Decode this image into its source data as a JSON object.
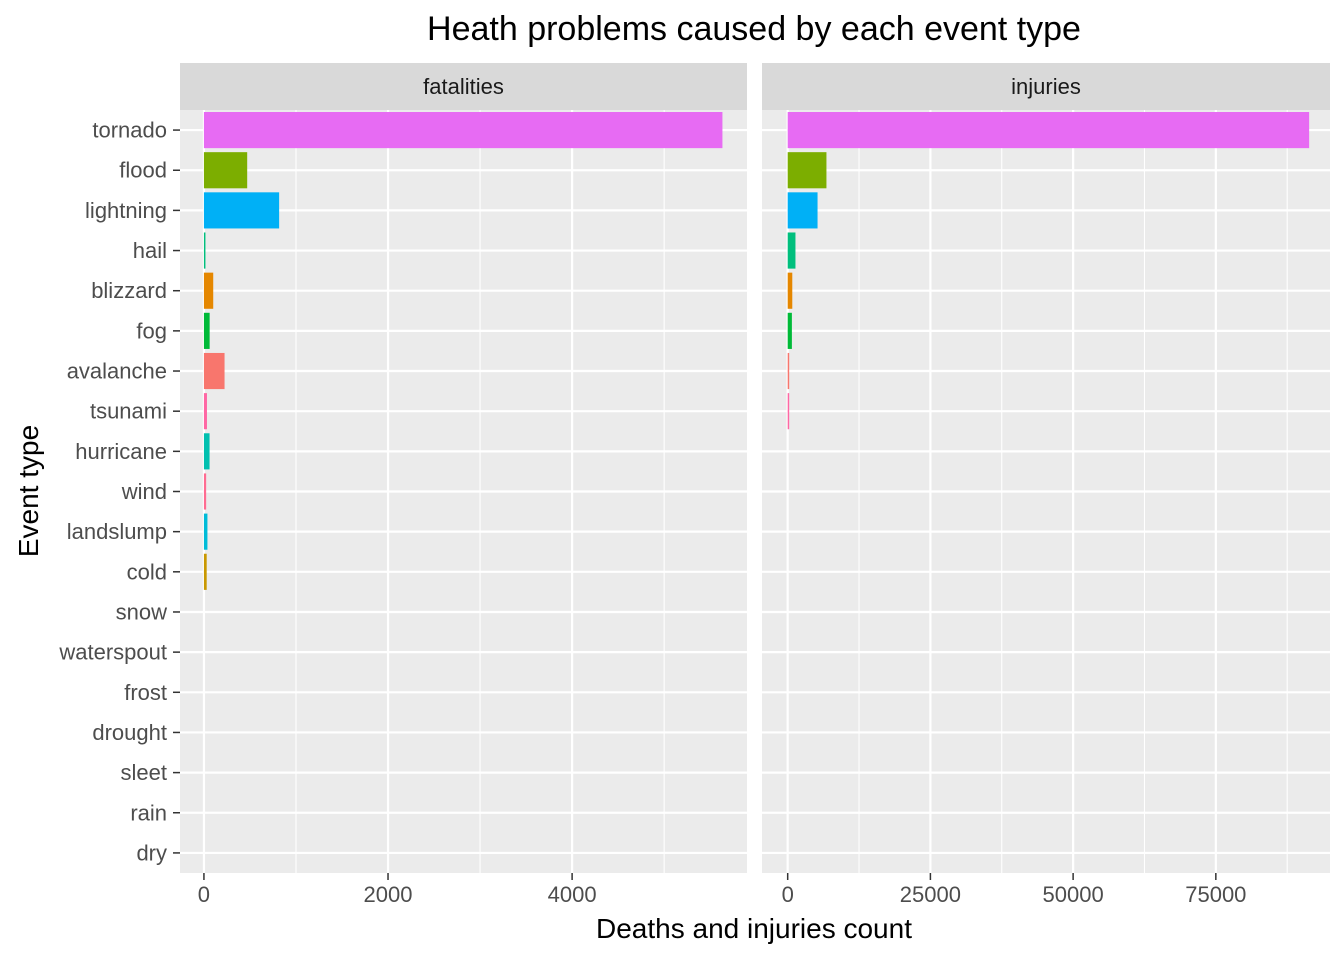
{
  "chart_data": {
    "type": "bar",
    "orientation": "horizontal",
    "title": "Heath problems caused by each event type",
    "xlabel": "Deaths and injuries count",
    "ylabel": "Event type",
    "grid": true,
    "legend": "none",
    "categories": [
      "tornado",
      "flood",
      "lightning",
      "hail",
      "blizzard",
      "fog",
      "avalanche",
      "tsunami",
      "hurricane",
      "wind",
      "landslump",
      "cold",
      "snow",
      "waterspout",
      "frost",
      "drought",
      "sleet",
      "rain",
      "dry"
    ],
    "colors": {
      "tornado": "#E76BF3",
      "flood": "#7CAE00",
      "lightning": "#00B0F6",
      "hail": "#00BF7D",
      "blizzard": "#E58700",
      "fog": "#00BA38",
      "avalanche": "#F8766D",
      "tsunami": "#FF67A4",
      "hurricane": "#00C0AF",
      "wind": "#FF6C91",
      "landslump": "#00BCD8",
      "cold": "#C99800",
      "snow": "#A3A500",
      "waterspout": "#9590FF",
      "frost": "#6BB100",
      "drought": "#DE8C00",
      "sleet": "#619CFF",
      "rain": "#00A9FF",
      "dry": "#B79F00"
    },
    "facets": [
      {
        "label": "fatalities",
        "xlim": [
          -260,
          5900
        ],
        "ticks": [
          0,
          2000,
          4000
        ],
        "tick_labels": [
          "0",
          "2000",
          "4000"
        ],
        "minor_ticks": [
          1000,
          3000,
          5000
        ],
        "values": [
          5633,
          470,
          817,
          15,
          101,
          62,
          224,
          33,
          61,
          24,
          38,
          30,
          0,
          0,
          0,
          0,
          0,
          0,
          0
        ]
      },
      {
        "label": "injuries",
        "xlim": [
          -4500,
          95000
        ],
        "ticks": [
          0,
          25000,
          50000,
          75000
        ],
        "tick_labels": [
          "0",
          "25000",
          "50000",
          "75000"
        ],
        "minor_ticks": [
          12500,
          37500,
          62500,
          87500
        ],
        "values": [
          91346,
          6789,
          5230,
          1361,
          805,
          734,
          170,
          129,
          0,
          0,
          0,
          0,
          0,
          0,
          0,
          0,
          0,
          0,
          0
        ]
      }
    ]
  }
}
